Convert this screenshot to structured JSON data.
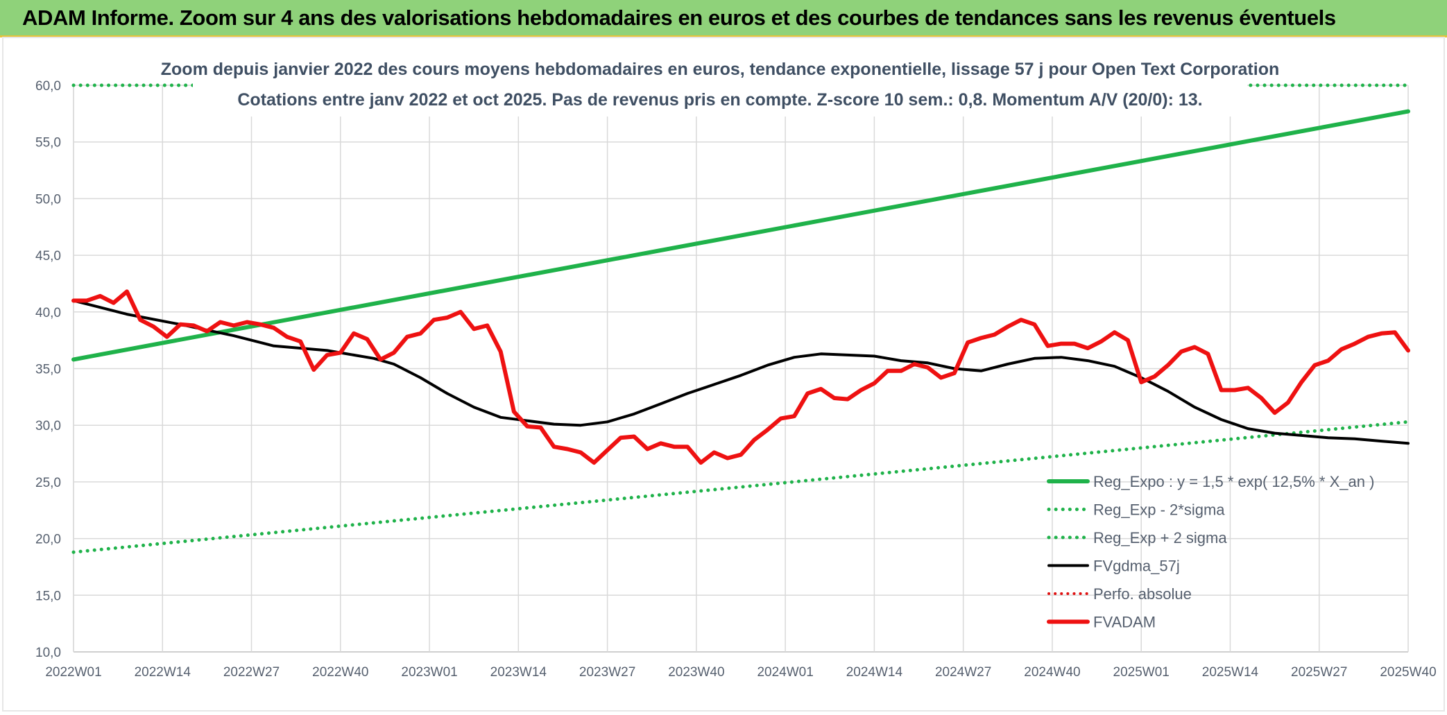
{
  "banner": {
    "title": "ADAM Informe. Zoom sur 4 ans des valorisations hebdomadaires en euros et des courbes de tendances sans les revenus éventuels"
  },
  "chart_data": {
    "type": "line",
    "title": "Zoom depuis janvier 2022 des cours moyens hebdomadaires en euros, tendance exponentielle, lissage 57 j pour Open Text Corporation",
    "subtitle": "Cotations entre janv 2022 et oct 2025. Pas de revenus pris en compte. Z-score 10 sem.: 0,8. Momentum A/V (20/0): 13.",
    "ylim": [
      10,
      60
    ],
    "y_ticks": [
      "10,0",
      "15,0",
      "20,0",
      "25,0",
      "30,0",
      "35,0",
      "40,0",
      "45,0",
      "50,0",
      "55,0",
      "60,0"
    ],
    "x_ticks": [
      "2022W01",
      "2022W14",
      "2022W27",
      "2022W40",
      "2023W01",
      "2023W14",
      "2023W27",
      "2023W40",
      "2024W01",
      "2024W14",
      "2024W27",
      "2024W40",
      "2025W01",
      "2025W14",
      "2025W27",
      "2025W40"
    ],
    "x_count": 201,
    "grid": true,
    "legend_position": "bottom-right",
    "colors": {
      "reg_expo": "#1fb24a",
      "reg_dotted": "#1fb24a",
      "fvgdma": "#000000",
      "perfo": "#e01010",
      "fvadam": "#ee1111"
    },
    "series": [
      {
        "name": "Reg_Expo : y = 1,5 * exp( 12,5% * X_an )",
        "style": "solid",
        "points": [
          [
            0,
            35.8
          ],
          [
            200,
            57.7
          ]
        ]
      },
      {
        "name": "Reg_Exp - 2*sigma",
        "style": "dotted",
        "points": [
          [
            0,
            18.8
          ],
          [
            200,
            30.3
          ]
        ]
      },
      {
        "name": "Reg_Exp + 2 sigma",
        "style": "dotted",
        "points": [
          [
            0,
            60.0
          ],
          [
            200,
            60.0
          ]
        ]
      },
      {
        "name": "FVgdma_57j",
        "style": "solid",
        "points": [
          [
            0,
            41.0
          ],
          [
            8,
            39.8
          ],
          [
            16,
            38.9
          ],
          [
            24,
            37.9
          ],
          [
            30,
            37.0
          ],
          [
            38,
            36.6
          ],
          [
            45,
            35.9
          ],
          [
            48,
            35.4
          ],
          [
            52,
            34.2
          ],
          [
            56,
            32.8
          ],
          [
            60,
            31.6
          ],
          [
            64,
            30.7
          ],
          [
            68,
            30.4
          ],
          [
            72,
            30.1
          ],
          [
            76,
            30.0
          ],
          [
            80,
            30.3
          ],
          [
            84,
            31.0
          ],
          [
            88,
            31.9
          ],
          [
            92,
            32.8
          ],
          [
            96,
            33.6
          ],
          [
            100,
            34.4
          ],
          [
            104,
            35.3
          ],
          [
            108,
            36.0
          ],
          [
            112,
            36.3
          ],
          [
            116,
            36.2
          ],
          [
            120,
            36.1
          ],
          [
            124,
            35.7
          ],
          [
            128,
            35.5
          ],
          [
            132,
            35.0
          ],
          [
            136,
            34.8
          ],
          [
            140,
            35.4
          ],
          [
            144,
            35.9
          ],
          [
            148,
            36.0
          ],
          [
            152,
            35.7
          ],
          [
            156,
            35.2
          ],
          [
            160,
            34.2
          ],
          [
            164,
            33.0
          ],
          [
            168,
            31.6
          ],
          [
            172,
            30.5
          ],
          [
            176,
            29.7
          ],
          [
            180,
            29.3
          ],
          [
            184,
            29.1
          ],
          [
            188,
            28.9
          ],
          [
            192,
            28.8
          ],
          [
            196,
            28.6
          ],
          [
            200,
            28.4
          ]
        ]
      },
      {
        "name": "Perfo. absolue",
        "style": "dotted",
        "points": []
      },
      {
        "name": "FVADAM",
        "style": "solid",
        "points": [
          [
            0,
            41.0
          ],
          [
            2,
            41.0
          ],
          [
            4,
            41.4
          ],
          [
            6,
            40.8
          ],
          [
            8,
            41.8
          ],
          [
            10,
            39.3
          ],
          [
            12,
            38.7
          ],
          [
            14,
            37.8
          ],
          [
            16,
            38.9
          ],
          [
            18,
            38.8
          ],
          [
            20,
            38.3
          ],
          [
            22,
            39.1
          ],
          [
            24,
            38.8
          ],
          [
            26,
            39.1
          ],
          [
            28,
            38.9
          ],
          [
            30,
            38.6
          ],
          [
            32,
            37.8
          ],
          [
            34,
            37.4
          ],
          [
            36,
            34.9
          ],
          [
            38,
            36.2
          ],
          [
            40,
            36.4
          ],
          [
            42,
            38.1
          ],
          [
            44,
            37.6
          ],
          [
            46,
            35.8
          ],
          [
            48,
            36.4
          ],
          [
            50,
            37.8
          ],
          [
            52,
            38.1
          ],
          [
            54,
            39.3
          ],
          [
            56,
            39.5
          ],
          [
            58,
            40.0
          ],
          [
            60,
            38.5
          ],
          [
            62,
            38.8
          ],
          [
            64,
            36.5
          ],
          [
            66,
            31.2
          ],
          [
            68,
            29.9
          ],
          [
            70,
            29.8
          ],
          [
            72,
            28.1
          ],
          [
            74,
            27.9
          ],
          [
            76,
            27.6
          ],
          [
            78,
            26.7
          ],
          [
            80,
            27.8
          ],
          [
            82,
            28.9
          ],
          [
            84,
            29.0
          ],
          [
            86,
            27.9
          ],
          [
            88,
            28.4
          ],
          [
            90,
            28.1
          ],
          [
            92,
            28.1
          ],
          [
            94,
            26.7
          ],
          [
            96,
            27.6
          ],
          [
            98,
            27.1
          ],
          [
            100,
            27.4
          ],
          [
            102,
            28.7
          ],
          [
            104,
            29.6
          ],
          [
            106,
            30.6
          ],
          [
            108,
            30.8
          ],
          [
            110,
            32.8
          ],
          [
            112,
            33.2
          ],
          [
            114,
            32.4
          ],
          [
            116,
            32.3
          ],
          [
            118,
            33.1
          ],
          [
            120,
            33.7
          ],
          [
            122,
            34.8
          ],
          [
            124,
            34.8
          ],
          [
            126,
            35.4
          ],
          [
            128,
            35.1
          ],
          [
            130,
            34.2
          ],
          [
            132,
            34.6
          ],
          [
            134,
            37.3
          ],
          [
            136,
            37.7
          ],
          [
            138,
            38.0
          ],
          [
            140,
            38.7
          ],
          [
            142,
            39.3
          ],
          [
            144,
            38.9
          ],
          [
            146,
            37.0
          ],
          [
            148,
            37.2
          ],
          [
            150,
            37.2
          ],
          [
            152,
            36.8
          ],
          [
            154,
            37.4
          ],
          [
            156,
            38.2
          ],
          [
            158,
            37.5
          ],
          [
            160,
            33.8
          ],
          [
            162,
            34.3
          ],
          [
            164,
            35.3
          ],
          [
            166,
            36.5
          ],
          [
            168,
            36.9
          ],
          [
            170,
            36.3
          ],
          [
            172,
            33.1
          ],
          [
            174,
            33.1
          ],
          [
            176,
            33.3
          ],
          [
            178,
            32.4
          ],
          [
            180,
            31.1
          ],
          [
            182,
            32.0
          ],
          [
            184,
            33.8
          ],
          [
            186,
            35.3
          ],
          [
            188,
            35.7
          ],
          [
            190,
            36.7
          ],
          [
            192,
            37.2
          ],
          [
            194,
            37.8
          ],
          [
            196,
            38.1
          ],
          [
            198,
            38.2
          ],
          [
            200,
            36.6
          ]
        ]
      }
    ]
  }
}
